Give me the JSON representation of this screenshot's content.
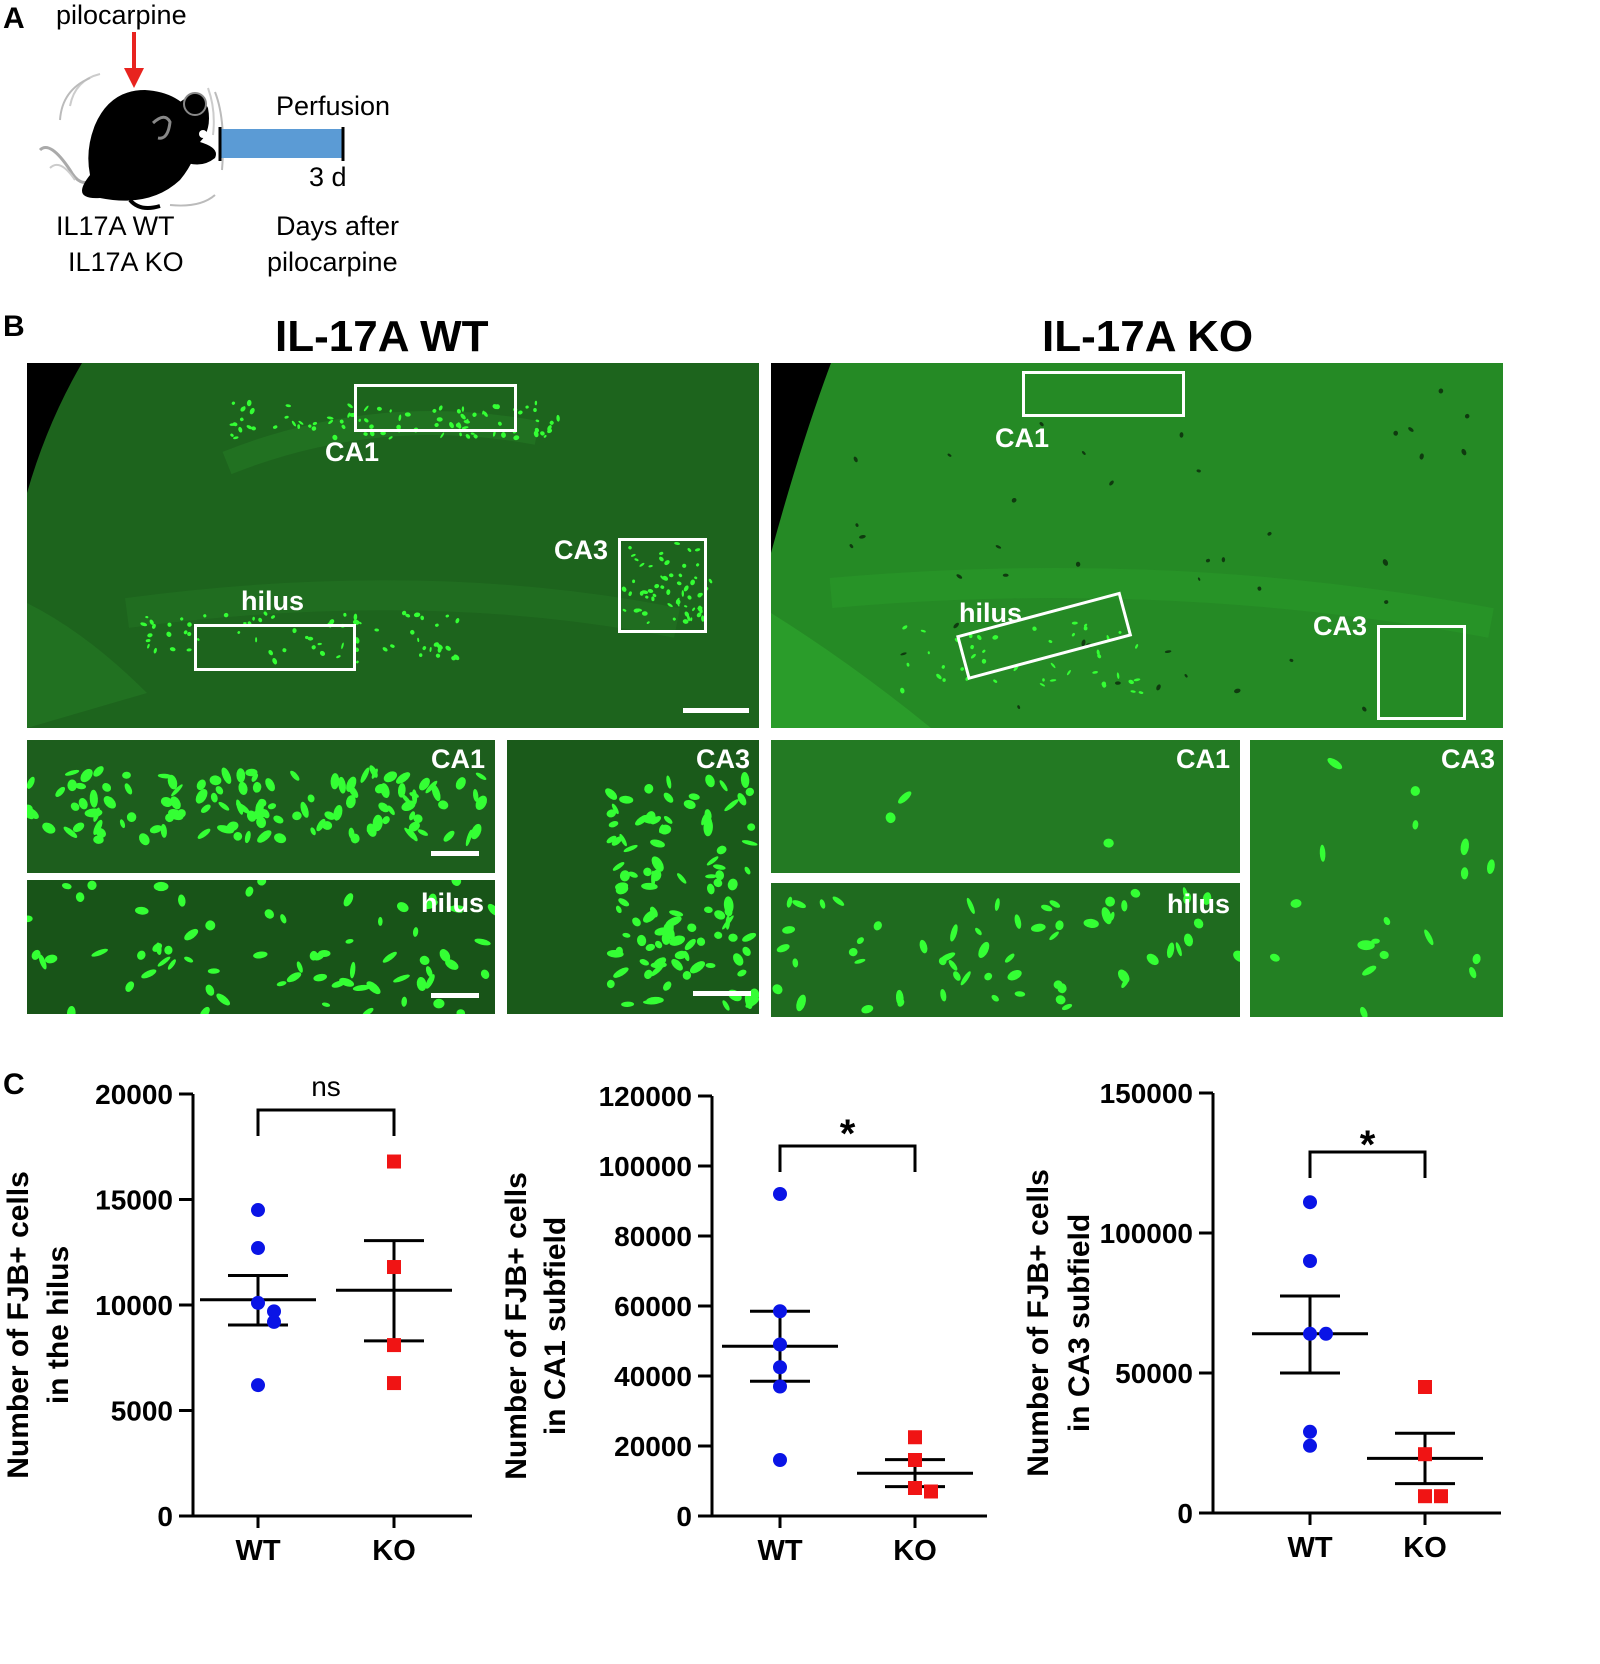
{
  "panel_a": {
    "letter": "A",
    "drug_label": "pilocarpine",
    "perfusion_label": "Perfusion",
    "day_label": "3 d",
    "genotypes": [
      "IL17A WT",
      "IL17A KO"
    ],
    "time_axis": [
      "Days after",
      "pilocarpine"
    ],
    "colors": {
      "arrow": "#e8231f",
      "timeline_bar": "#5b9bd5",
      "mouse": "#000000"
    }
  },
  "panel_b": {
    "letter": "B",
    "wt": {
      "title": "IL-17A WT",
      "labels": {
        "ca1": "CA1",
        "ca3": "CA3",
        "hilus": "hilus"
      },
      "insets": {
        "ca1": "CA1",
        "ca3": "CA3",
        "hilus": "hilus"
      }
    },
    "ko": {
      "title": "IL-17A KO",
      "labels": {
        "ca1": "CA1",
        "ca3": "CA3",
        "hilus": "hilus"
      },
      "insets": {
        "ca1": "CA1",
        "ca3": "CA3",
        "hilus": "hilus"
      }
    },
    "colors": {
      "tissue": "#1f6b1f",
      "stain": "#34ff34",
      "box": "#ffffff"
    }
  },
  "panel_c": {
    "letter": "C"
  },
  "chart_data": [
    {
      "type": "scatter",
      "title": "",
      "ylabel": "Number of FJB+ cells in the hilus",
      "ylabel_lines": [
        "Number of FJB+ cells",
        "in the hilus"
      ],
      "categories": [
        "WT",
        "KO"
      ],
      "ylim": [
        0,
        20000
      ],
      "yticks": [
        0,
        5000,
        10000,
        15000,
        20000
      ],
      "ytick_labels": [
        "0",
        "5000",
        "10000",
        "15000",
        "20000"
      ],
      "series": [
        {
          "name": "WT",
          "color": "#0a14e6",
          "marker": "circle",
          "values": [
            14500,
            12700,
            10100,
            9700,
            9200,
            6200
          ],
          "mean": 10250,
          "sem_low": 9050,
          "sem_high": 11400
        },
        {
          "name": "KO",
          "color": "#f01414",
          "marker": "square",
          "values": [
            16800,
            11800,
            8100,
            6300
          ],
          "mean": 10700,
          "sem_low": 8300,
          "sem_high": 13050
        }
      ],
      "significance": "ns"
    },
    {
      "type": "scatter",
      "title": "",
      "ylabel": "Number of FJB+ cells in CA1 subfield",
      "ylabel_lines": [
        "Number of FJB+ cells",
        "in CA1 subfield"
      ],
      "categories": [
        "WT",
        "KO"
      ],
      "ylim": [
        0,
        120000
      ],
      "yticks": [
        0,
        20000,
        40000,
        60000,
        80000,
        100000,
        120000
      ],
      "ytick_labels": [
        "0",
        "20000",
        "40000",
        "60000",
        "80000",
        "100000",
        "120000"
      ],
      "series": [
        {
          "name": "WT",
          "color": "#0a14e6",
          "marker": "circle",
          "values": [
            92000,
            58500,
            49000,
            42500,
            37000,
            16000
          ],
          "mean": 48500,
          "sem_low": 38500,
          "sem_high": 58500
        },
        {
          "name": "KO",
          "color": "#f01414",
          "marker": "square",
          "values": [
            22500,
            16000,
            8000,
            7000
          ],
          "mean": 12200,
          "sem_low": 8400,
          "sem_high": 16100
        }
      ],
      "significance": "*"
    },
    {
      "type": "scatter",
      "title": "",
      "ylabel": "Number of FJB+ cells in CA3 subfield",
      "ylabel_lines": [
        "Number of FJB+ cells",
        "in CA3 subfield"
      ],
      "categories": [
        "WT",
        "KO"
      ],
      "ylim": [
        0,
        150000
      ],
      "yticks": [
        0,
        50000,
        100000,
        150000
      ],
      "ytick_labels": [
        "0",
        "50000",
        "100000",
        "150000"
      ],
      "series": [
        {
          "name": "WT",
          "color": "#0a14e6",
          "marker": "circle",
          "values": [
            111000,
            90000,
            64000,
            64000,
            29000,
            24000
          ],
          "mean": 64000,
          "sem_low": 50000,
          "sem_high": 77500
        },
        {
          "name": "KO",
          "color": "#f01414",
          "marker": "square",
          "values": [
            45000,
            21000,
            6000,
            6000
          ],
          "mean": 19500,
          "sem_low": 10500,
          "sem_high": 28500
        }
      ],
      "significance": "*"
    }
  ]
}
